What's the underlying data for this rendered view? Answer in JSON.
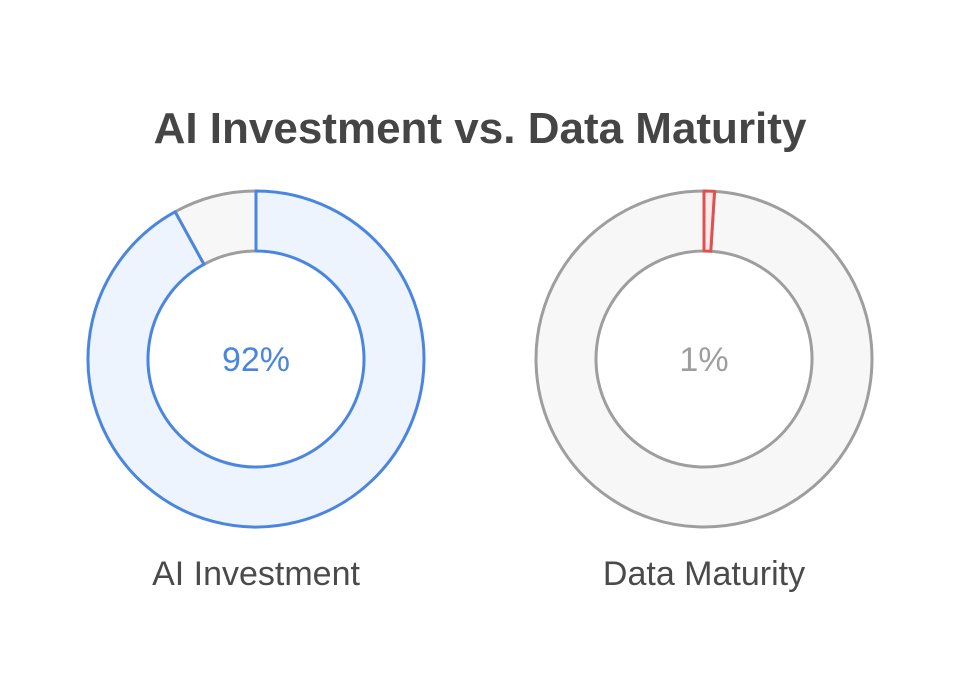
{
  "title": "AI Investment vs. Data Maturity",
  "chart_data": [
    {
      "type": "pie",
      "variant": "donut",
      "label": "AI Investment",
      "value": 92,
      "center_text": "92%",
      "colors": {
        "filled_stroke": "#4a86e0",
        "filled_fill": "#edf4fd",
        "rest_stroke": "#9e9e9e",
        "rest_fill": "#f7f7f7",
        "text": "#4a86e0"
      }
    },
    {
      "type": "pie",
      "variant": "donut",
      "label": "Data Maturity",
      "value": 1,
      "center_text": "1%",
      "colors": {
        "filled_stroke": "#e05050",
        "filled_fill": "#fde9e9",
        "rest_stroke": "#9e9e9e",
        "rest_fill": "#f7f7f7",
        "text": "#9e9e9e"
      }
    }
  ]
}
